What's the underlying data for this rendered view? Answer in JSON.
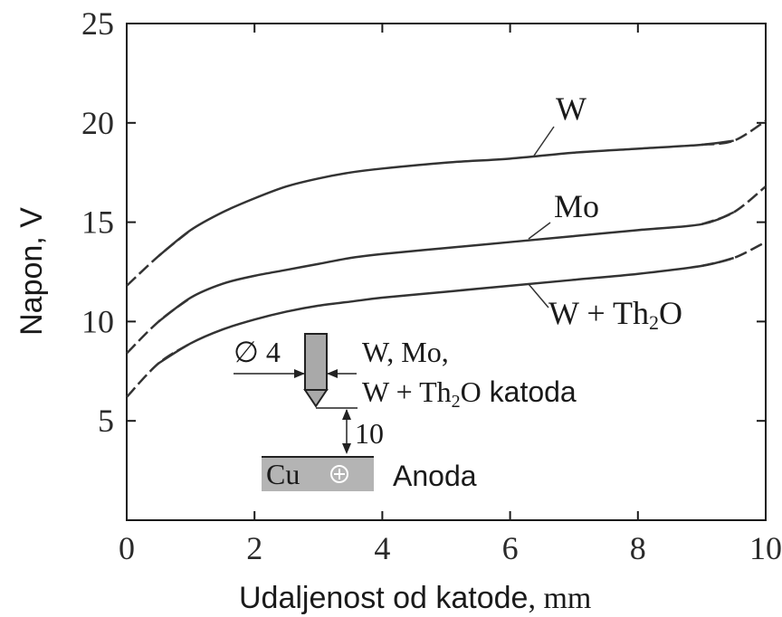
{
  "chart_data": {
    "type": "line",
    "xlabel_main": "Udaljenost od katode",
    "xlabel_unit": ", mm",
    "ylabel": "Napon, V",
    "xlim": [
      0,
      10
    ],
    "ylim": [
      0,
      25
    ],
    "xticks": [
      "0",
      "2",
      "4",
      "6",
      "8",
      "10"
    ],
    "yticks": [
      "5",
      "10",
      "15",
      "20",
      "25"
    ],
    "grid": false,
    "series": [
      {
        "name": "W",
        "label_parts": [
          "W"
        ],
        "x": [
          0,
          0.5,
          1,
          1.5,
          2,
          2.5,
          3,
          3.5,
          4,
          5,
          6,
          7,
          8,
          9,
          9.5,
          10
        ],
        "y": [
          11.8,
          13.3,
          14.6,
          15.5,
          16.2,
          16.8,
          17.2,
          17.5,
          17.7,
          18.0,
          18.2,
          18.5,
          18.7,
          18.9,
          19.1,
          20.1
        ]
      },
      {
        "name": "Mo",
        "label_parts": [
          "Mo"
        ],
        "x": [
          0,
          0.5,
          1,
          1.5,
          2,
          2.5,
          3,
          3.5,
          4,
          5,
          6,
          7,
          8,
          9,
          9.5,
          10
        ],
        "y": [
          8.4,
          10.0,
          11.2,
          11.9,
          12.3,
          12.6,
          12.9,
          13.2,
          13.4,
          13.7,
          14.0,
          14.3,
          14.6,
          14.9,
          15.5,
          16.8
        ]
      },
      {
        "name": "W + Th2O",
        "label_parts": [
          "W + Th",
          "2",
          "O"
        ],
        "x": [
          0,
          0.5,
          1,
          1.5,
          2,
          2.5,
          3,
          3.5,
          4,
          5,
          6,
          7,
          8,
          9,
          9.5,
          10
        ],
        "y": [
          6.2,
          7.9,
          8.9,
          9.6,
          10.1,
          10.5,
          10.8,
          11.0,
          11.2,
          11.5,
          11.8,
          12.1,
          12.4,
          12.8,
          13.2,
          14.0
        ]
      }
    ],
    "inset": {
      "diameter_label": "∅ 4",
      "cathode_label_line1": "W, Mo,",
      "cathode_label_line2_parts": [
        "W + Th",
        "2",
        "O",
        " katoda"
      ],
      "gap_label": "10",
      "anode_material": "Cu",
      "anode_label": "Anoda",
      "colors": {
        "anode_fill": "#b4b4b4",
        "electrode_fill": "#a9a9a9"
      }
    },
    "colors": {
      "line": "#333333",
      "axis": "#1a1a1a",
      "text": "#1a1a1a"
    }
  }
}
